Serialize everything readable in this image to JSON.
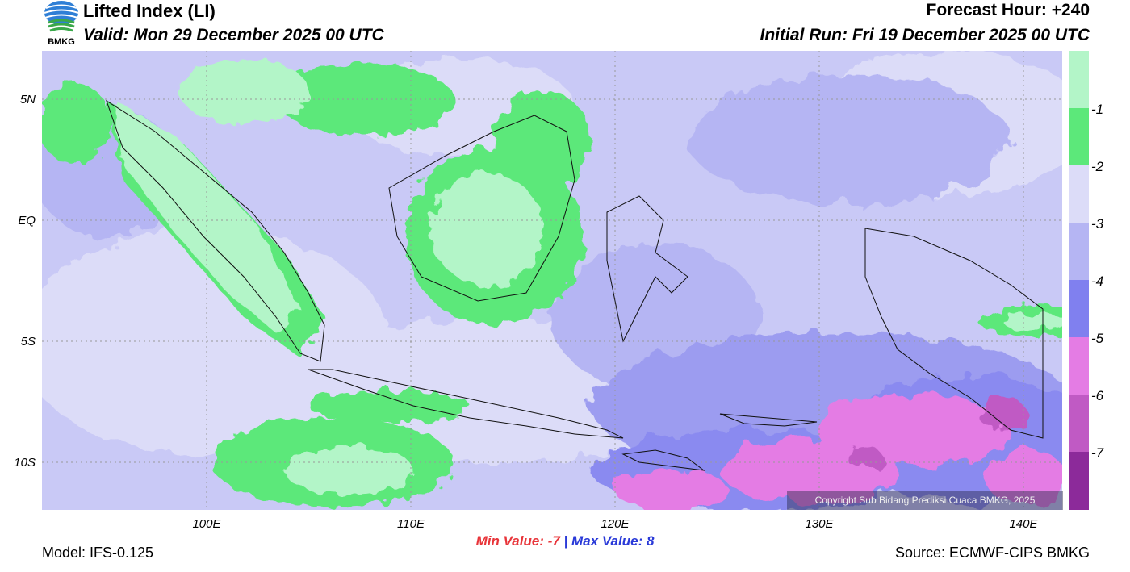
{
  "header": {
    "title": "Lifted Index (LI)",
    "valid": "Valid: Mon 29 December 2025 00 UTC",
    "forecast_hour": "Forecast Hour: +240",
    "initial_run": "Initial Run: Fri 19 December 2025 00 UTC",
    "logo_text": "BMKG"
  },
  "map": {
    "lat_labels": [
      "5N",
      "EQ",
      "5S",
      "10S"
    ],
    "lon_labels": [
      "100E",
      "110E",
      "120E",
      "130E",
      "140E"
    ],
    "copyright": "Copyright Sub Bidang Prediksi Cuaca BMKG, 2025"
  },
  "colorbar": {
    "labels": [
      "-1",
      "-2",
      "-3",
      "-4",
      "-5",
      "-6",
      "-7"
    ],
    "colors": [
      "#b3f5c8",
      "#5ce87a",
      "#dcdcf8",
      "#b5b5f3",
      "#8080ef",
      "#e47ce4",
      "#c05ac4",
      "#8c2a9a"
    ]
  },
  "footer": {
    "min_label": "Min Value:",
    "min_value": "-7",
    "separator": "|",
    "max_label": "Max Value:",
    "max_value": "8",
    "model": "Model: IFS-0.125",
    "source": "Source: ECMWF-CIPS BMKG"
  }
}
